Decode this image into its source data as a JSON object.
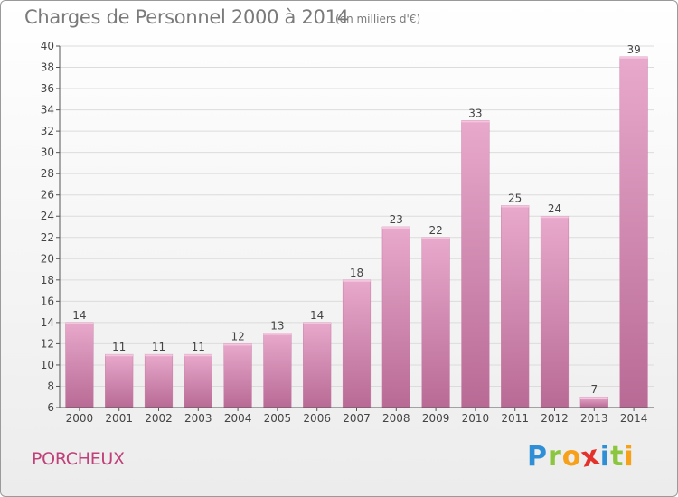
{
  "chart_data": {
    "type": "bar",
    "title": "Charges de Personnel 2000 à 2014",
    "subtitle": "(en milliers d'€)",
    "categories": [
      "2000",
      "2001",
      "2002",
      "2003",
      "2004",
      "2005",
      "2006",
      "2007",
      "2008",
      "2009",
      "2010",
      "2011",
      "2012",
      "2013",
      "2014"
    ],
    "values": [
      14,
      11,
      11,
      11,
      12,
      13,
      14,
      18,
      23,
      22,
      33,
      25,
      24,
      7,
      39
    ],
    "ylim": [
      6,
      40
    ],
    "yticks": [
      6,
      8,
      10,
      12,
      14,
      16,
      18,
      20,
      22,
      24,
      26,
      28,
      30,
      32,
      34,
      36,
      38,
      40
    ],
    "grid": true,
    "bar_color_light": "#e8a9cc",
    "bar_color_dark": "#b86a95"
  },
  "commune": "PORCHEUX",
  "logo": {
    "text": "Proxiti",
    "letter_colors": [
      "#2f8fd6",
      "#8cc63f",
      "#f7a11a",
      "#e4322b",
      "#2f8fd6",
      "#8cc63f",
      "#f7a11a"
    ]
  }
}
